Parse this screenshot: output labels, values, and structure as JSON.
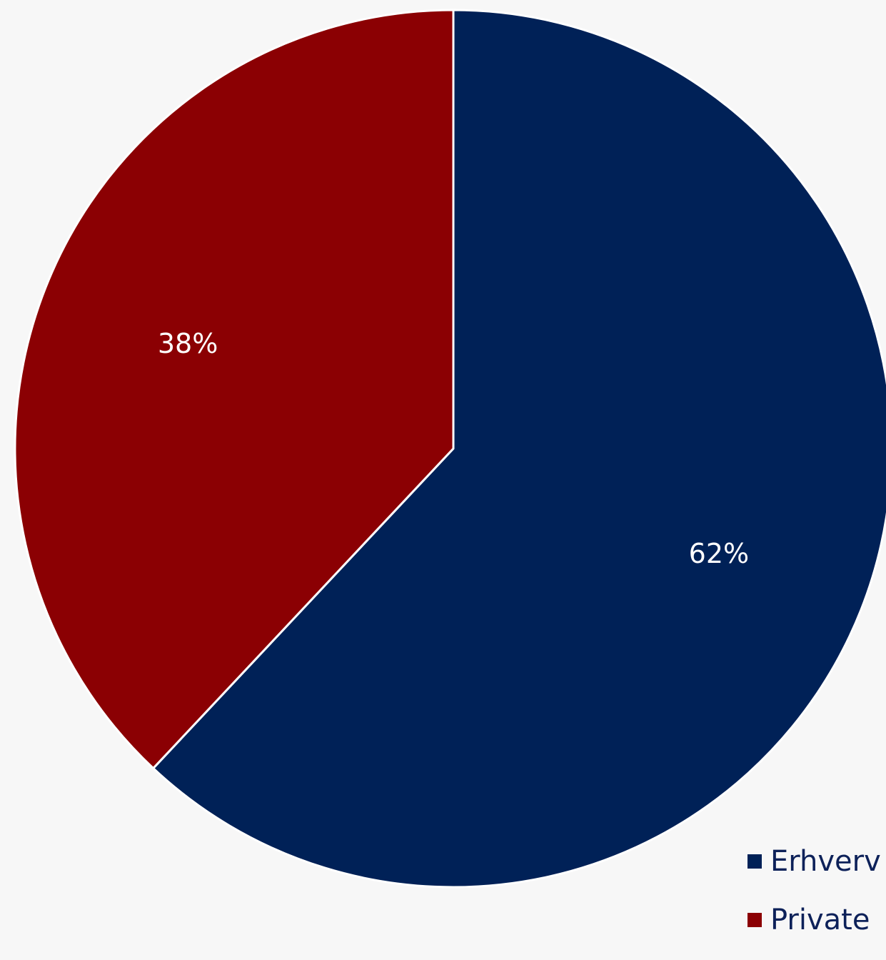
{
  "chart_data": {
    "type": "pie",
    "title": "",
    "slices": [
      {
        "name": "Erhverv",
        "value": 62,
        "label": "62%",
        "color": "#002157"
      },
      {
        "name": "Private",
        "value": 38,
        "label": "38%",
        "color": "#8b0003"
      }
    ],
    "start_angle_deg": 0,
    "direction": "clockwise",
    "legend_position": "bottom-right",
    "label_color": "#ffffff",
    "separator_color": "#ffffff"
  }
}
